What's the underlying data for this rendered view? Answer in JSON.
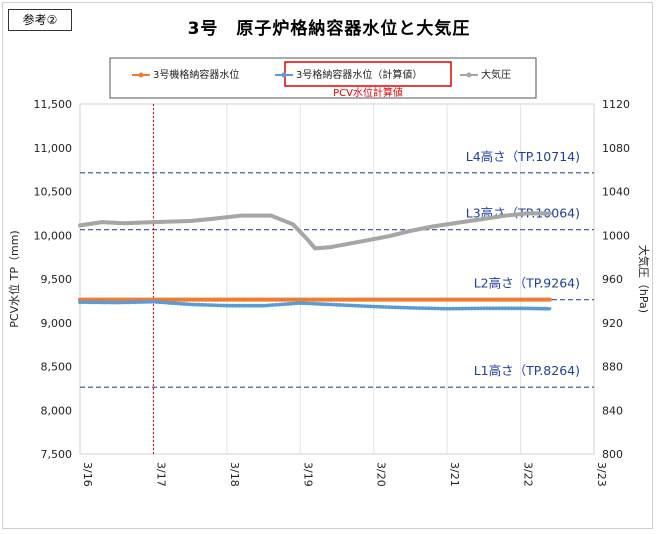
{
  "badge": "参考②",
  "chart_data": {
    "type": "line",
    "title": "3号　原子炉格納容器水位と大気圧",
    "ylabel": "PCV水位 TP（mm)",
    "y2label": "大気圧（hPa)",
    "ylim": [
      7500,
      11500
    ],
    "y2lim": [
      800,
      1120
    ],
    "xlim": [
      0,
      7
    ],
    "x_ticks": [
      "3/16",
      "3/17",
      "3/18",
      "3/19",
      "3/20",
      "3/21",
      "3/22",
      "3/23"
    ],
    "y_ticks": [
      "7,500",
      "8,000",
      "8,500",
      "9,000",
      "9,500",
      "10,000",
      "10,500",
      "11,000",
      "11,500"
    ],
    "y2_ticks": [
      "800",
      "840",
      "880",
      "920",
      "960",
      "1000",
      "1040",
      "1080",
      "1120"
    ],
    "legend": {
      "position": "top",
      "items": [
        "3号機格納容器水位",
        "3号格納容器水位（計算値）",
        "大気圧"
      ]
    },
    "highlight_note": "PCV水位計算値",
    "vline_x": 1.0,
    "reference_lines": [
      {
        "label": "L4高さ（TP.10714)",
        "value": 10714
      },
      {
        "label": "L3高さ（TP.10064)",
        "value": 10064
      },
      {
        "label": "L2高さ（TP.9264)",
        "value": 9264
      },
      {
        "label": "L1高さ（TP.8264)",
        "value": 8264
      }
    ],
    "series": [
      {
        "name": "3号機格納容器水位",
        "axis": "left",
        "color": "#ed7d31",
        "x": [
          0.0,
          1.0,
          2.0,
          3.0,
          4.0,
          5.0,
          6.0,
          6.4
        ],
        "y": [
          9264,
          9264,
          9264,
          9264,
          9264,
          9264,
          9264,
          9264
        ]
      },
      {
        "name": "3号格納容器水位（計算値）",
        "axis": "left",
        "color": "#5b9bd5",
        "x": [
          0.0,
          0.5,
          1.0,
          1.5,
          2.0,
          2.5,
          3.0,
          3.5,
          4.0,
          4.5,
          5.0,
          5.5,
          6.0,
          6.4
        ],
        "y": [
          9235,
          9230,
          9240,
          9210,
          9195,
          9195,
          9225,
          9205,
          9185,
          9170,
          9160,
          9165,
          9165,
          9160
        ]
      },
      {
        "name": "大気圧",
        "axis": "right",
        "color": "#a6a6a6",
        "x": [
          0.0,
          0.3,
          0.6,
          1.0,
          1.5,
          1.8,
          2.2,
          2.6,
          2.9,
          3.1,
          3.2,
          3.4,
          3.8,
          4.2,
          4.5,
          4.8,
          5.2,
          5.5,
          5.8,
          6.1,
          6.4
        ],
        "y": [
          1009,
          1012,
          1011,
          1012,
          1013,
          1015,
          1018,
          1018,
          1010,
          996,
          988,
          989,
          994,
          999,
          1004,
          1008,
          1012,
          1015,
          1018,
          1020,
          1020
        ]
      }
    ]
  }
}
